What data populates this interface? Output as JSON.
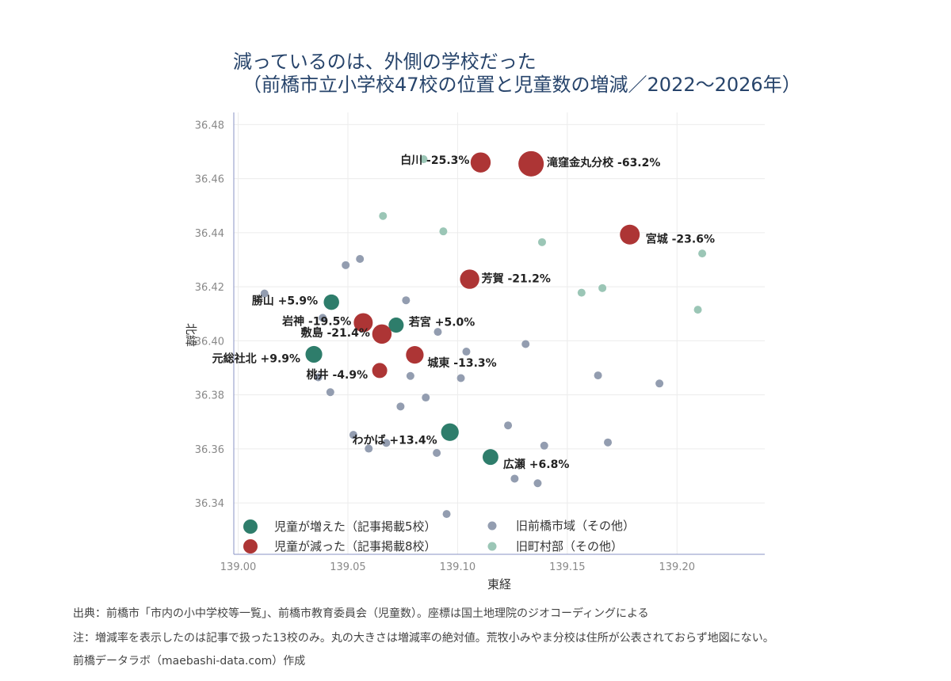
{
  "title": {
    "line1": "減っているのは、外側の学校だった",
    "line2": "（前橋市立小学校47校の位置と児童数の増減／2022〜2026年）"
  },
  "footer": {
    "source": "出典：前橋市「市内の小中学校等一覧」、前橋市教育委員会（児童数）。座標は国土地理院のジオコーディングによる",
    "note": "注：増減率を表示したのは記事で扱った13校のみ。丸の大きさは増減率の絶対値。荒牧小みやま分校は住所が公表されておらず地図にない。",
    "credit": "前橋データラボ（maebashi-data.com）作成"
  },
  "colors": {
    "increase": "#2e7d6b",
    "decrease": "#ad3535",
    "old_city": "#939db0",
    "old_town": "#9bc6b6",
    "title": "#27446b",
    "axis": "#8a93c4",
    "grid": "#ececec"
  },
  "chart_data": {
    "type": "scatter",
    "xlabel": "東経",
    "ylabel": "北緯",
    "xlim": [
      138.998,
      139.24
    ],
    "ylim": [
      36.321,
      36.4845
    ],
    "xticks": [
      139.0,
      139.05,
      139.1,
      139.15,
      139.2
    ],
    "xtick_labels": [
      "139.00",
      "139.05",
      "139.10",
      "139.15",
      "139.20"
    ],
    "yticks": [
      36.34,
      36.36,
      36.38,
      36.4,
      36.42,
      36.44,
      36.46,
      36.48
    ],
    "ytick_labels": [
      "36.34",
      "36.36",
      "36.38",
      "36.40",
      "36.42",
      "36.44",
      "36.46",
      "36.48"
    ],
    "grid": true,
    "legend_position": "bottom-left",
    "legend": [
      {
        "label": "児童が増えた（記事掲載5校）",
        "series": "increase"
      },
      {
        "label": "旧前橋市域（その他）",
        "series": "old_city"
      },
      {
        "label": "児童が減った（記事掲載8校）",
        "series": "decrease"
      },
      {
        "label": "旧町村部（その他）",
        "series": "old_town"
      }
    ],
    "labeled_schools": [
      {
        "name": "滝窪金丸分校",
        "change": -63.2,
        "x": 139.1335,
        "y": 36.4655,
        "group": "decrease",
        "label": "滝窪金丸分校 -63.2%"
      },
      {
        "name": "白川",
        "change": -25.3,
        "x": 139.1105,
        "y": 36.466,
        "group": "decrease",
        "label": "白川 -25.3%"
      },
      {
        "name": "宮城",
        "change": -23.6,
        "x": 139.1785,
        "y": 36.4393,
        "group": "decrease",
        "label": "宮城 -23.6%"
      },
      {
        "name": "芳賀",
        "change": -21.2,
        "x": 139.1055,
        "y": 36.4228,
        "group": "decrease",
        "label": "芳賀 -21.2%"
      },
      {
        "name": "勝山",
        "change": 5.9,
        "x": 139.0425,
        "y": 36.4143,
        "group": "increase",
        "label": "勝山 +5.9%"
      },
      {
        "name": "岩神",
        "change": -19.5,
        "x": 139.057,
        "y": 36.4067,
        "group": "decrease",
        "label": "岩神 -19.5%"
      },
      {
        "name": "若宮",
        "change": 5.0,
        "x": 139.072,
        "y": 36.4058,
        "group": "increase",
        "label": "若宮 +5.0%"
      },
      {
        "name": "敷島",
        "change": -21.4,
        "x": 139.0655,
        "y": 36.4025,
        "group": "decrease",
        "label": "敷島 -21.4%"
      },
      {
        "name": "元総社北",
        "change": 9.9,
        "x": 139.0345,
        "y": 36.395,
        "group": "increase",
        "label": "元総社北 +9.9%"
      },
      {
        "name": "城東",
        "change": -13.3,
        "x": 139.0805,
        "y": 36.3948,
        "group": "decrease",
        "label": "城東 -13.3%"
      },
      {
        "name": "桃井",
        "change": -4.9,
        "x": 139.0645,
        "y": 36.389,
        "group": "decrease",
        "label": "桃井 -4.9%"
      },
      {
        "name": "わかば",
        "change": 13.4,
        "x": 139.0965,
        "y": 36.3662,
        "group": "increase",
        "label": "わかば +13.4%"
      },
      {
        "name": "広瀬",
        "change": 6.8,
        "x": 139.115,
        "y": 36.357,
        "group": "increase",
        "label": "広瀬 +6.8%"
      }
    ],
    "old_city_schools": [
      [
        139.012,
        36.4175
      ],
      [
        139.0385,
        36.4085
      ],
      [
        139.049,
        36.428
      ],
      [
        139.0555,
        36.4303
      ],
      [
        139.0765,
        36.415
      ],
      [
        139.091,
        36.4033
      ],
      [
        139.104,
        36.396
      ],
      [
        139.131,
        36.3988
      ],
      [
        139.0785,
        36.387
      ],
      [
        139.1015,
        36.3862
      ],
      [
        139.0365,
        36.3865
      ],
      [
        139.042,
        36.381
      ],
      [
        139.0855,
        36.379
      ],
      [
        139.074,
        36.3757
      ],
      [
        139.164,
        36.3872
      ],
      [
        139.192,
        36.3842
      ],
      [
        139.123,
        36.3687
      ],
      [
        139.0525,
        36.3652
      ],
      [
        139.0675,
        36.3622
      ],
      [
        139.0595,
        36.3601
      ],
      [
        139.0905,
        36.3585
      ],
      [
        139.1395,
        36.3612
      ],
      [
        139.1685,
        36.3624
      ],
      [
        139.126,
        36.349
      ],
      [
        139.1365,
        36.3473
      ],
      [
        139.095,
        36.3359
      ]
    ],
    "old_town_schools": [
      [
        139.0845,
        36.4672
      ],
      [
        139.066,
        36.4462
      ],
      [
        139.0935,
        36.4405
      ],
      [
        139.1385,
        36.4365
      ],
      [
        139.2115,
        36.4323
      ],
      [
        139.1565,
        36.4178
      ],
      [
        139.166,
        36.4195
      ],
      [
        139.2095,
        36.4115
      ]
    ]
  }
}
